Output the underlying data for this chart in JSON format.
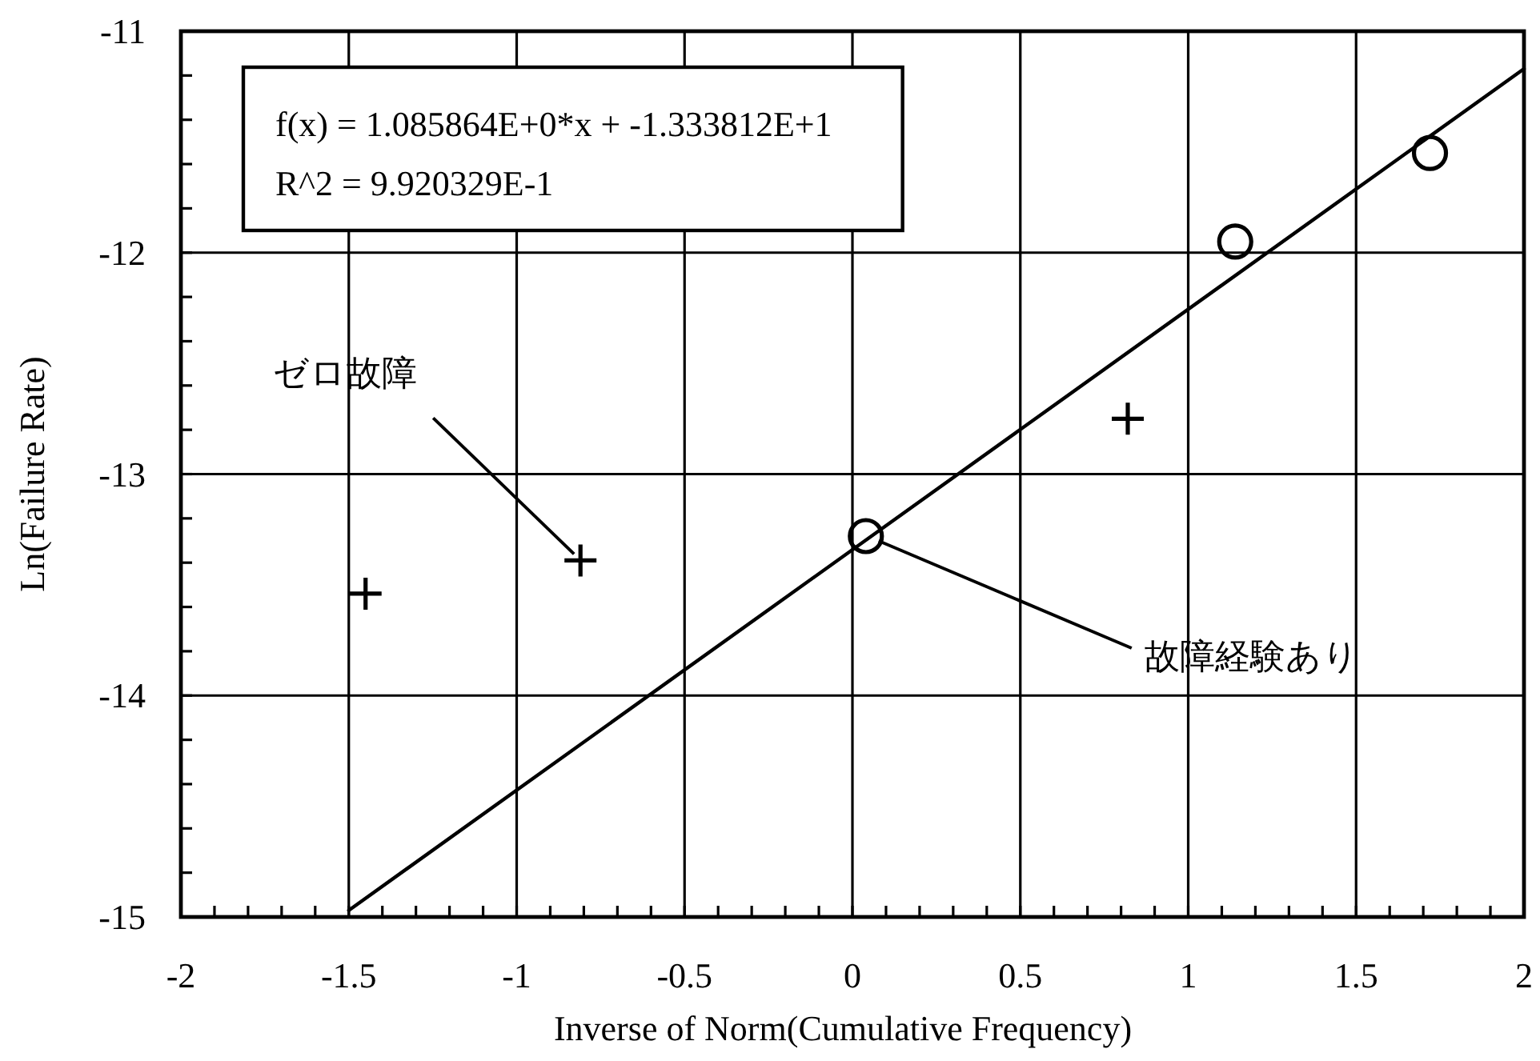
{
  "chart_data": {
    "type": "scatter",
    "xlabel": "Inverse of Norm(Cumulative Frequency)",
    "ylabel": "Ln(Failure Rate)",
    "annotations": [
      "f(x) = 1.085864E+0*x + -1.333812E+1",
      "R^2 = 9.920329E-1",
      {
        "text": "ゼロ故障",
        "x": -0.81,
        "y": -13.39
      },
      {
        "text": "故障経験あり",
        "x": 0.04,
        "y": -13.28
      }
    ],
    "xlim": [
      -2,
      2
    ],
    "ylim": [
      -15,
      -11
    ],
    "xticks": [
      -2,
      {
        "value": -1.9,
        "label": null
      },
      {
        "value": -1.8,
        "label": null
      },
      {
        "value": -1.7,
        "label": null
      },
      {
        "value": -1.6,
        "label": null
      },
      -1.5,
      {
        "value": -1.4,
        "label": null
      },
      {
        "value": -1.3,
        "label": null
      },
      {
        "value": -1.2,
        "label": null
      },
      {
        "value": -1.1,
        "label": null
      },
      -1,
      {
        "value": -0.9,
        "label": null
      },
      {
        "value": -0.8,
        "label": null
      },
      {
        "value": -0.7,
        "label": null
      },
      {
        "value": -0.6,
        "label": null
      },
      -0.5,
      {
        "value": -0.4,
        "label": null
      },
      {
        "value": -0.3,
        "label": null
      },
      {
        "value": -0.2,
        "label": null
      },
      {
        "value": -0.1,
        "label": null
      },
      0,
      {
        "value": 0.1,
        "label": null
      },
      {
        "value": 0.2,
        "label": null
      },
      {
        "value": 0.3,
        "label": null
      },
      {
        "value": 0.4,
        "label": null
      },
      0.5,
      {
        "value": 0.6,
        "label": null
      },
      {
        "value": 0.7,
        "label": null
      },
      {
        "value": 0.8,
        "label": null
      },
      {
        "value": 0.9,
        "label": null
      },
      1,
      {
        "value": 1.1,
        "label": null
      },
      {
        "value": 1.2,
        "label": null
      },
      {
        "value": 1.3,
        "label": null
      },
      {
        "value": 1.4,
        "label": null
      },
      1.5,
      {
        "value": 1.6,
        "label": null
      },
      {
        "value": 1.7,
        "label": null
      },
      {
        "value": 1.8,
        "label": null
      },
      {
        "value": 1.9,
        "label": null
      },
      2
    ],
    "yticks": [
      -15,
      {
        "value": -14.8,
        "label": null
      },
      {
        "value": -14.6,
        "label": null
      },
      {
        "value": -14.4,
        "label": null
      },
      {
        "value": -14.2,
        "label": null
      },
      -14,
      {
        "value": -13.8,
        "label": null
      },
      {
        "value": -13.6,
        "label": null
      },
      {
        "value": -13.4,
        "label": null
      },
      {
        "value": -13.2,
        "label": null
      },
      -13,
      {
        "value": -12.8,
        "label": null
      },
      {
        "value": -12.6,
        "label": null
      },
      {
        "value": -12.4,
        "label": null
      },
      {
        "value": -12.2,
        "label": null
      },
      -12,
      {
        "value": -11.8,
        "label": null
      },
      {
        "value": -11.6,
        "label": null
      },
      {
        "value": -11.4,
        "label": null
      },
      {
        "value": -11.2,
        "label": null
      },
      -11
    ],
    "grid": true,
    "series": [
      {
        "type": "line",
        "color": "#000000",
        "marker": "none",
        "line_style": "solid",
        "x": [
          -1.5,
          2
        ],
        "values": [
          -14.97,
          -11.17
        ]
      },
      {
        "color": "#000000",
        "marker": "cross",
        "x": [
          -1.45,
          -0.81,
          0.82
        ],
        "values": [
          -13.54,
          -13.39,
          -12.75
        ]
      },
      {
        "color": "#000000",
        "marker": "circle",
        "x": [
          0.04,
          1.14,
          1.72
        ],
        "values": [
          -13.28,
          -11.95,
          -11.55
        ]
      }
    ]
  }
}
